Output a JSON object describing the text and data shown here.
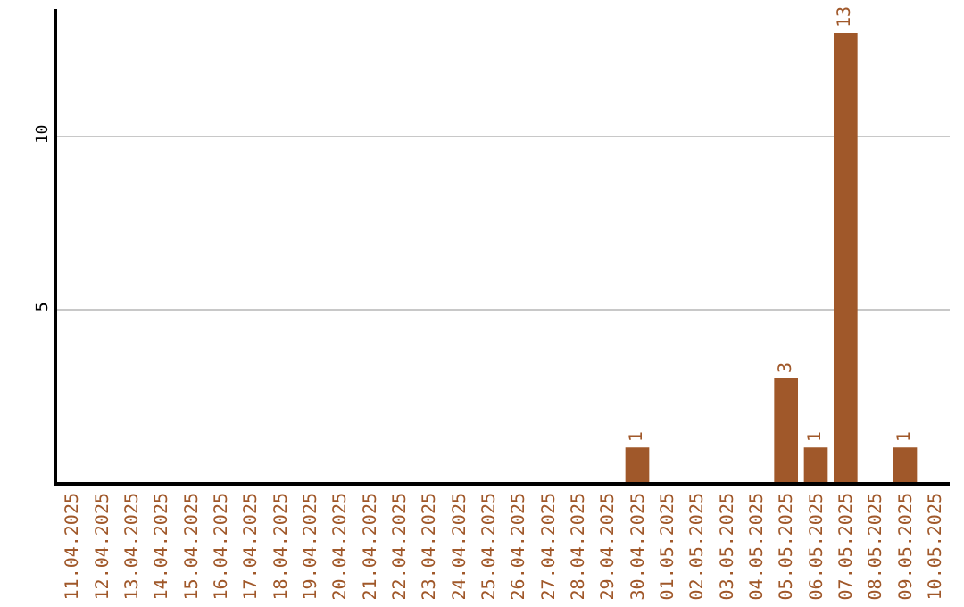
{
  "chart_data": {
    "type": "bar",
    "categories": [
      "11.04.2025",
      "12.04.2025",
      "13.04.2025",
      "14.04.2025",
      "15.04.2025",
      "16.04.2025",
      "17.04.2025",
      "18.04.2025",
      "19.04.2025",
      "20.04.2025",
      "21.04.2025",
      "22.04.2025",
      "23.04.2025",
      "24.04.2025",
      "25.04.2025",
      "26.04.2025",
      "27.04.2025",
      "28.04.2025",
      "29.04.2025",
      "30.04.2025",
      "01.05.2025",
      "02.05.2025",
      "03.05.2025",
      "04.05.2025",
      "05.05.2025",
      "06.05.2025",
      "07.05.2025",
      "08.05.2025",
      "09.05.2025",
      "10.05.2025"
    ],
    "values": [
      0,
      0,
      0,
      0,
      0,
      0,
      0,
      0,
      0,
      0,
      0,
      0,
      0,
      0,
      0,
      0,
      0,
      0,
      0,
      1,
      0,
      0,
      0,
      0,
      3,
      1,
      13,
      0,
      1,
      0
    ],
    "value_labels": [
      null,
      null,
      null,
      null,
      null,
      null,
      null,
      null,
      null,
      null,
      null,
      null,
      null,
      null,
      null,
      null,
      null,
      null,
      null,
      "1",
      null,
      null,
      null,
      null,
      "3",
      "1",
      "13",
      null,
      "1",
      null
    ],
    "color": "#a0582a",
    "ylim": [
      0,
      13.7
    ],
    "yticks": [
      5,
      10
    ],
    "grid": "y",
    "legend": false
  }
}
